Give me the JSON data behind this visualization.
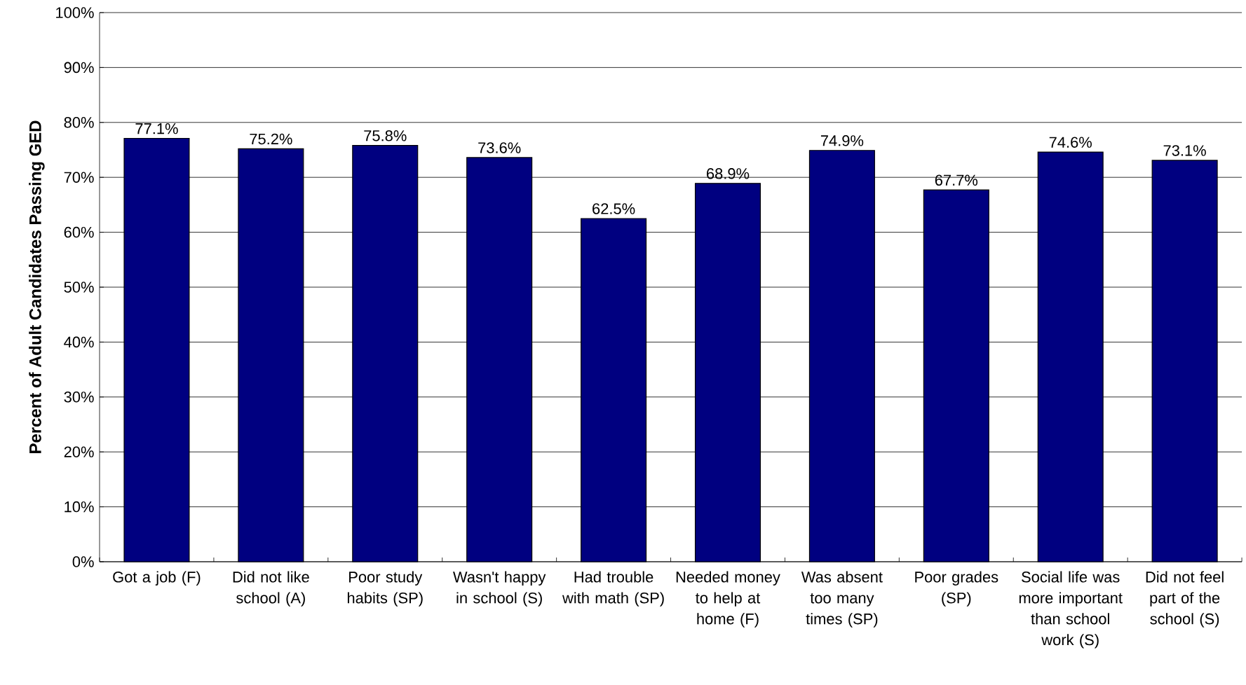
{
  "chart_data": {
    "type": "bar",
    "ylabel": "Percent of Adult Candidates Passing GED",
    "categories": [
      "Got a job (F)",
      "Did not like school (A)",
      "Poor study habits (SP)",
      "Wasn't happy in school (S)",
      "Had trouble with math (SP)",
      "Needed money to help at home (F)",
      "Was absent too many times (SP)",
      "Poor grades (SP)",
      "Social life was more important than school work (S)",
      "Did not feel part of the school (S)"
    ],
    "values": [
      77.1,
      75.2,
      75.8,
      73.6,
      62.5,
      68.9,
      74.9,
      67.7,
      74.6,
      73.1
    ],
    "value_labels": [
      "77.1%",
      "75.2%",
      "75.8%",
      "73.6%",
      "62.5%",
      "68.9%",
      "74.9%",
      "67.7%",
      "74.6%",
      "73.1%"
    ],
    "color": "#000080",
    "ylim": [
      0,
      100
    ],
    "yticks": [
      {
        "value": 0,
        "label": "0%"
      },
      {
        "value": 10,
        "label": "10%"
      },
      {
        "value": 20,
        "label": "20%"
      },
      {
        "value": 30,
        "label": "30%"
      },
      {
        "value": 40,
        "label": "40%"
      },
      {
        "value": 50,
        "label": "50%"
      },
      {
        "value": 60,
        "label": "60%"
      },
      {
        "value": 70,
        "label": "70%"
      },
      {
        "value": 80,
        "label": "80%"
      },
      {
        "value": 90,
        "label": "90%"
      },
      {
        "value": 100,
        "label": "100%"
      }
    ],
    "grid": "y"
  }
}
